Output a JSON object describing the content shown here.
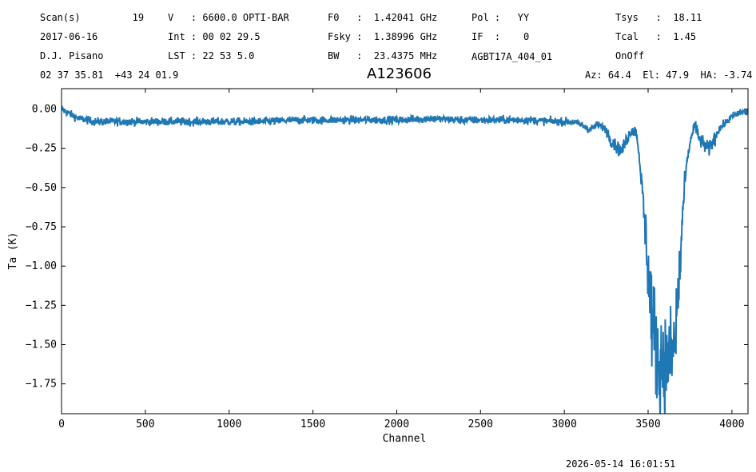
{
  "header": {
    "col1": [
      "Scan(s)         19",
      "2017-06-16",
      "D.J. Pisano",
      "02 37 35.81  +43 24 01.9"
    ],
    "col2": [
      "V   : 6600.0 OPTI-BAR",
      "Int : 00 02 29.5",
      "LST : 22 53 5.0"
    ],
    "col3": [
      "F0   :  1.42041 GHz",
      "Fsky :  1.38996 GHz",
      "BW   :  23.4375 MHz"
    ],
    "col4": [
      "Pol :   YY",
      "IF  :    0",
      "AGBT17A_404_01"
    ],
    "col5": [
      "Tsys   :  18.11",
      "Tcal   :  1.45",
      "OnOff"
    ],
    "azel": "Az: 64.4  El: 47.9  HA: -3.74"
  },
  "timestamp": "2026-05-14 16:01:51",
  "chart_data": {
    "type": "line",
    "title": "A123606",
    "xlabel": "Channel",
    "ylabel": "Ta (K)",
    "xlim": [
      0,
      4096
    ],
    "ylim": [
      -1.94,
      0.13
    ],
    "xticks": [
      0,
      500,
      1000,
      1500,
      2000,
      2500,
      3000,
      3500,
      4000
    ],
    "yticks": [
      0.0,
      -0.25,
      -0.5,
      -0.75,
      -1.0,
      -1.25,
      -1.5,
      -1.75
    ],
    "ytick_labels": [
      "0.00",
      "−0.25",
      "−0.50",
      "−0.75",
      "−1.00",
      "−1.25",
      "−1.50",
      "−1.75"
    ],
    "line_color": "#1f77b4",
    "series": [
      {
        "profile_x": [
          0,
          30,
          100,
          200,
          400,
          600,
          800,
          1000,
          1200,
          1400,
          1600,
          1800,
          2000,
          2200,
          2400,
          2600,
          2800,
          2950,
          3050,
          3100,
          3150,
          3200,
          3250,
          3280,
          3310,
          3340,
          3370,
          3400,
          3430,
          3450,
          3470,
          3490,
          3510,
          3530,
          3560,
          3600,
          3630,
          3660,
          3690,
          3710,
          3730,
          3760,
          3780,
          3800,
          3830,
          3860,
          3890,
          3920,
          3960,
          4000,
          4050,
          4096
        ],
        "profile_y": [
          0.0,
          -0.02,
          -0.06,
          -0.08,
          -0.08,
          -0.08,
          -0.08,
          -0.08,
          -0.08,
          -0.07,
          -0.07,
          -0.07,
          -0.07,
          -0.06,
          -0.07,
          -0.07,
          -0.07,
          -0.08,
          -0.08,
          -0.1,
          -0.13,
          -0.1,
          -0.13,
          -0.2,
          -0.24,
          -0.27,
          -0.2,
          -0.13,
          -0.15,
          -0.33,
          -0.6,
          -0.85,
          -1.18,
          -1.4,
          -1.6,
          -1.62,
          -1.6,
          -1.5,
          -1.0,
          -0.6,
          -0.35,
          -0.16,
          -0.1,
          -0.18,
          -0.22,
          -0.26,
          -0.2,
          -0.13,
          -0.09,
          -0.05,
          -0.02,
          -0.02
        ]
      }
    ]
  }
}
